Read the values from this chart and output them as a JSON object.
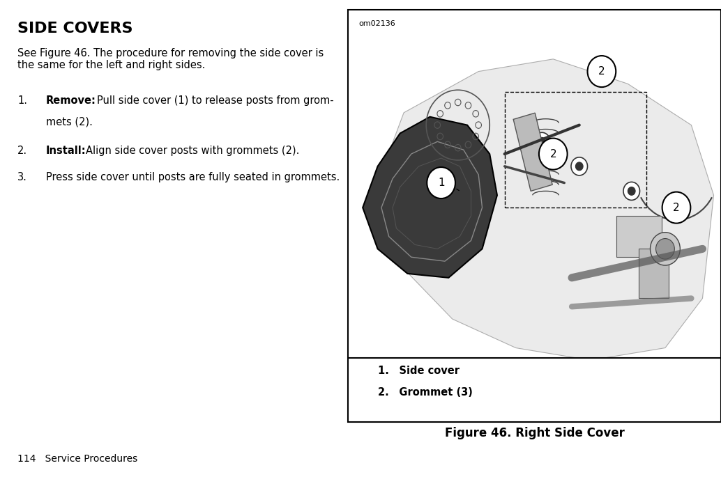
{
  "bg_color": "#ffffff",
  "title": "SIDE COVERS",
  "title_fontsize": 16,
  "intro_text": "See Figure 46. The procedure for removing the side cover is\nthe same for the left and right sides.",
  "step1_bold": "Remove:",
  "step1_text": " Pull side cover (1) to release posts from grom-\n        mets (2).",
  "step2_bold": "Install:",
  "step2_text": " Align side cover posts with grommets (2).",
  "step3_text": "Press side cover until posts are fully seated in grommets.",
  "footer_text": "114   Service Procedures",
  "figure_caption": "Figure 46. Right Side Cover",
  "figure_label_id": "om02136",
  "legend_1": "1. Side cover",
  "legend_2": "2. Grommet (3)",
  "box_color": "#000000",
  "text_color": "#000000",
  "fig_bg": "#f5f5f5"
}
